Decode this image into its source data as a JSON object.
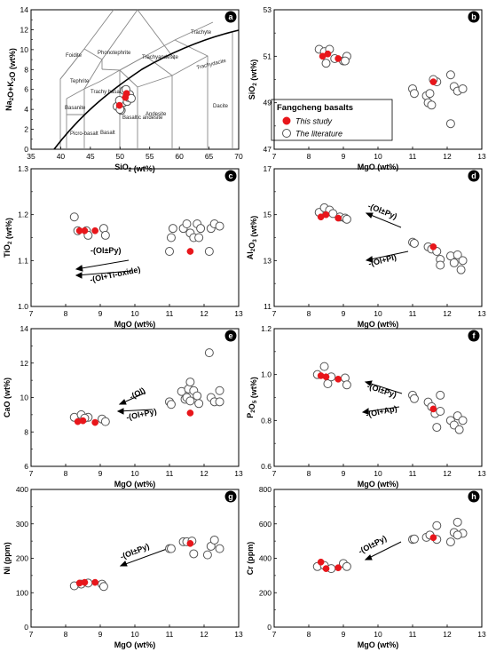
{
  "legend": {
    "title": "Fangcheng basalts",
    "items": [
      {
        "label": "This study",
        "fill": "#e8161b",
        "stroke": "#e8161b"
      },
      {
        "label": "The literature",
        "fill": "#ffffff",
        "stroke": "#555555"
      }
    ]
  },
  "colors": {
    "study": "#e8161b",
    "literature_stroke": "#555555",
    "field_lines": "#888888",
    "curve": "#000000"
  },
  "tas_field_labels": [
    "Foidite",
    "Phonotephrite",
    "Trachyte",
    "Trachyandesite",
    "Trachydacite",
    "Tephrite",
    "Trachy basalt",
    "Basanite",
    "Picro-basalt",
    "Basalt",
    "Basaltic andesite",
    "Andesite",
    "Dacite"
  ],
  "chart_data": [
    {
      "id": "a",
      "type": "scatter",
      "title": "",
      "xlabel": "SiO2 (wt%)",
      "ylabel": "Na2O+K2O (wt%)",
      "xlim": [
        35,
        70
      ],
      "ylim": [
        0,
        14
      ],
      "xticks": [
        35,
        40,
        45,
        50,
        55,
        60,
        65,
        70
      ],
      "yticks": [
        0,
        2,
        4,
        6,
        8,
        10,
        12,
        14
      ],
      "series": [
        {
          "name": "This study",
          "points": [
            [
              49.9,
              4.4
            ],
            [
              50.9,
              5.2
            ],
            [
              51.1,
              5.6
            ]
          ]
        },
        {
          "name": "The literature",
          "points": [
            [
              49.5,
              4.3
            ],
            [
              50.2,
              3.9
            ],
            [
              50.6,
              4.7
            ],
            [
              51.2,
              4.8
            ],
            [
              51.4,
              5.2
            ],
            [
              51.6,
              5.5
            ],
            [
              50.7,
              5.9
            ],
            [
              49.9,
              4.9
            ],
            [
              51.9,
              5.1
            ],
            [
              50.0,
              4.0
            ],
            [
              51.0,
              6.0
            ]
          ]
        }
      ]
    },
    {
      "id": "b",
      "type": "scatter",
      "title": "",
      "xlabel": "MgO (wt%)",
      "ylabel": "SiO2 (wt%)",
      "xlim": [
        7,
        13
      ],
      "ylim": [
        47,
        53
      ],
      "xticks": [
        7,
        8,
        9,
        10,
        11,
        12,
        13
      ],
      "yticks": [
        47,
        49,
        51,
        53
      ],
      "series": [
        {
          "name": "This study",
          "points": [
            [
              8.4,
              51.0
            ],
            [
              8.55,
              51.1
            ],
            [
              8.85,
              50.9
            ],
            [
              11.6,
              49.9
            ]
          ]
        },
        {
          "name": "The literature",
          "points": [
            [
              8.3,
              51.3
            ],
            [
              8.45,
              51.2
            ],
            [
              8.6,
              51.3
            ],
            [
              8.5,
              50.7
            ],
            [
              8.75,
              50.9
            ],
            [
              9.0,
              50.8
            ],
            [
              9.1,
              51.0
            ],
            [
              9.05,
              50.8
            ],
            [
              11.0,
              49.6
            ],
            [
              11.05,
              49.4
            ],
            [
              11.4,
              49.3
            ],
            [
              11.45,
              49.0
            ],
            [
              11.5,
              49.4
            ],
            [
              11.7,
              49.9
            ],
            [
              11.6,
              50.0
            ],
            [
              12.1,
              50.2
            ],
            [
              12.2,
              49.7
            ],
            [
              12.3,
              49.5
            ],
            [
              12.45,
              49.6
            ],
            [
              12.1,
              48.1
            ],
            [
              11.55,
              48.9
            ]
          ]
        }
      ]
    },
    {
      "id": "c",
      "type": "scatter",
      "title": "",
      "xlabel": "MgO (wt%)",
      "ylabel": "TiO2 (wt%)",
      "xlim": [
        7,
        13
      ],
      "ylim": [
        1.0,
        1.3
      ],
      "xticks": [
        7,
        8,
        9,
        10,
        11,
        12,
        13
      ],
      "yticks": [
        1.0,
        1.1,
        1.2,
        1.3
      ],
      "series": [
        {
          "name": "This study",
          "points": [
            [
              8.4,
              1.165
            ],
            [
              8.55,
              1.165
            ],
            [
              8.85,
              1.165
            ],
            [
              11.6,
              1.12
            ]
          ]
        },
        {
          "name": "The literature",
          "points": [
            [
              8.25,
              1.195
            ],
            [
              8.35,
              1.165
            ],
            [
              8.6,
              1.165
            ],
            [
              8.65,
              1.155
            ],
            [
              9.1,
              1.17
            ],
            [
              9.15,
              1.155
            ],
            [
              11.0,
              1.12
            ],
            [
              11.05,
              1.15
            ],
            [
              11.1,
              1.17
            ],
            [
              11.4,
              1.17
            ],
            [
              11.5,
              1.18
            ],
            [
              11.6,
              1.16
            ],
            [
              11.7,
              1.15
            ],
            [
              11.8,
              1.18
            ],
            [
              11.85,
              1.15
            ],
            [
              11.9,
              1.17
            ],
            [
              12.15,
              1.12
            ],
            [
              12.2,
              1.17
            ],
            [
              12.3,
              1.18
            ],
            [
              12.45,
              1.175
            ]
          ]
        }
      ],
      "annotations": [
        "-(Ol±Py)",
        "-(Ol+Ti-oxide)"
      ]
    },
    {
      "id": "d",
      "type": "scatter",
      "title": "",
      "xlabel": "MgO (wt%)",
      "ylabel": "Al2O3 (wt%)",
      "xlim": [
        7,
        13
      ],
      "ylim": [
        11,
        17
      ],
      "xticks": [
        7,
        8,
        9,
        10,
        11,
        12,
        13
      ],
      "yticks": [
        11,
        13,
        15,
        17
      ],
      "series": [
        {
          "name": "This study",
          "points": [
            [
              8.35,
              14.9
            ],
            [
              8.5,
              15.0
            ],
            [
              8.85,
              14.85
            ],
            [
              11.6,
              13.6
            ]
          ]
        },
        {
          "name": "The literature",
          "points": [
            [
              8.3,
              15.1
            ],
            [
              8.45,
              15.3
            ],
            [
              8.6,
              15.2
            ],
            [
              8.7,
              15.05
            ],
            [
              8.9,
              14.9
            ],
            [
              9.05,
              14.85
            ],
            [
              9.1,
              14.8
            ],
            [
              11.0,
              13.8
            ],
            [
              11.05,
              13.75
            ],
            [
              11.45,
              13.6
            ],
            [
              11.55,
              13.5
            ],
            [
              11.7,
              13.4
            ],
            [
              11.8,
              13.05
            ],
            [
              12.1,
              13.2
            ],
            [
              12.2,
              12.9
            ],
            [
              12.3,
              13.25
            ],
            [
              12.4,
              12.6
            ],
            [
              12.45,
              13.0
            ],
            [
              11.8,
              12.8
            ]
          ]
        }
      ],
      "annotations": [
        "-(Ol±Py)",
        "-(Ol+Pl)"
      ]
    },
    {
      "id": "e",
      "type": "scatter",
      "title": "",
      "xlabel": "MgO (wt%)",
      "ylabel": "CaO (wt%)",
      "xlim": [
        7,
        13
      ],
      "ylim": [
        6,
        14
      ],
      "xticks": [
        7,
        8,
        9,
        10,
        11,
        12,
        13
      ],
      "yticks": [
        6,
        8,
        10,
        12,
        14
      ],
      "series": [
        {
          "name": "This study",
          "points": [
            [
              8.35,
              8.6
            ],
            [
              8.5,
              8.65
            ],
            [
              8.85,
              8.55
            ],
            [
              11.6,
              9.1
            ]
          ]
        },
        {
          "name": "The literature",
          "points": [
            [
              8.25,
              8.85
            ],
            [
              8.45,
              9.0
            ],
            [
              8.65,
              8.85
            ],
            [
              8.55,
              8.8
            ],
            [
              9.05,
              8.75
            ],
            [
              9.15,
              8.6
            ],
            [
              11.0,
              9.75
            ],
            [
              11.05,
              9.6
            ],
            [
              11.35,
              10.35
            ],
            [
              11.45,
              9.9
            ],
            [
              11.5,
              10.0
            ],
            [
              11.55,
              10.5
            ],
            [
              11.6,
              10.9
            ],
            [
              11.7,
              10.4
            ],
            [
              11.8,
              10.1
            ],
            [
              11.85,
              9.65
            ],
            [
              12.15,
              12.6
            ],
            [
              12.2,
              10.0
            ],
            [
              12.3,
              9.75
            ],
            [
              12.45,
              10.4
            ],
            [
              12.45,
              9.75
            ],
            [
              11.6,
              9.8
            ]
          ]
        }
      ],
      "annotations": [
        "-(Ol)",
        "-(Ol+Py)"
      ]
    },
    {
      "id": "f",
      "type": "scatter",
      "title": "",
      "xlabel": "MgO (wt%)",
      "ylabel": "P2O5 (wt%)",
      "xlim": [
        7,
        13
      ],
      "ylim": [
        0.6,
        1.2
      ],
      "xticks": [
        7,
        8,
        9,
        10,
        11,
        12,
        13
      ],
      "yticks": [
        0.6,
        0.8,
        1.0,
        1.2
      ],
      "series": [
        {
          "name": "This study",
          "points": [
            [
              8.35,
              0.995
            ],
            [
              8.5,
              0.99
            ],
            [
              8.85,
              0.98
            ],
            [
              11.6,
              0.85
            ]
          ]
        },
        {
          "name": "The literature",
          "points": [
            [
              8.25,
              1.0
            ],
            [
              8.45,
              1.035
            ],
            [
              8.55,
              0.96
            ],
            [
              8.65,
              0.99
            ],
            [
              9.05,
              0.985
            ],
            [
              9.1,
              0.955
            ],
            [
              11.0,
              0.91
            ],
            [
              11.05,
              0.895
            ],
            [
              11.45,
              0.88
            ],
            [
              11.55,
              0.86
            ],
            [
              11.65,
              0.83
            ],
            [
              11.7,
              0.77
            ],
            [
              11.8,
              0.91
            ],
            [
              12.1,
              0.8
            ],
            [
              12.2,
              0.78
            ],
            [
              12.3,
              0.82
            ],
            [
              12.35,
              0.76
            ],
            [
              12.45,
              0.8
            ],
            [
              11.8,
              0.84
            ]
          ]
        }
      ],
      "annotations": [
        "-(Ol±Py)",
        "-(Ol+Ap)"
      ]
    },
    {
      "id": "g",
      "type": "scatter",
      "title": "",
      "xlabel": "MgO (wt%)",
      "ylabel": "Ni (ppm)",
      "xlim": [
        7,
        13
      ],
      "ylim": [
        0,
        400
      ],
      "xticks": [
        7,
        8,
        9,
        10,
        11,
        12,
        13
      ],
      "yticks": [
        0,
        100,
        200,
        300,
        400
      ],
      "series": [
        {
          "name": "This study",
          "points": [
            [
              8.4,
              128
            ],
            [
              8.55,
              130
            ],
            [
              8.85,
              130
            ],
            [
              11.6,
              243
            ]
          ]
        },
        {
          "name": "The literature",
          "points": [
            [
              8.25,
              120
            ],
            [
              8.45,
              125
            ],
            [
              8.65,
              128
            ],
            [
              9.05,
              125
            ],
            [
              9.1,
              118
            ],
            [
              11.0,
              228
            ],
            [
              11.05,
              228
            ],
            [
              11.4,
              248
            ],
            [
              11.5,
              248
            ],
            [
              11.65,
              250
            ],
            [
              11.7,
              213
            ],
            [
              12.1,
              210
            ],
            [
              12.2,
              235
            ],
            [
              12.3,
              253
            ],
            [
              12.45,
              228
            ]
          ]
        }
      ],
      "annotations": [
        "-(Ol±Py)"
      ]
    },
    {
      "id": "h",
      "type": "scatter",
      "title": "",
      "xlabel": "MgO (wt%)",
      "ylabel": "Cr (ppm)",
      "xlim": [
        7,
        13
      ],
      "ylim": [
        0,
        800
      ],
      "xticks": [
        7,
        8,
        9,
        10,
        11,
        12,
        13
      ],
      "yticks": [
        0,
        200,
        400,
        600,
        800
      ],
      "series": [
        {
          "name": "This study",
          "points": [
            [
              8.35,
              378
            ],
            [
              8.5,
              340
            ],
            [
              8.85,
              345
            ],
            [
              11.6,
              520
            ]
          ]
        },
        {
          "name": "The literature",
          "points": [
            [
              8.25,
              352
            ],
            [
              8.45,
              358
            ],
            [
              8.65,
              340
            ],
            [
              9.0,
              370
            ],
            [
              9.1,
              352
            ],
            [
              11.0,
              510
            ],
            [
              11.05,
              512
            ],
            [
              11.4,
              522
            ],
            [
              11.5,
              535
            ],
            [
              11.7,
              510
            ],
            [
              11.7,
              590
            ],
            [
              12.1,
              495
            ],
            [
              12.2,
              550
            ],
            [
              12.3,
              610
            ],
            [
              12.45,
              545
            ],
            [
              12.3,
              535
            ]
          ]
        }
      ],
      "annotations": [
        "-(Ol±Py)"
      ]
    }
  ]
}
